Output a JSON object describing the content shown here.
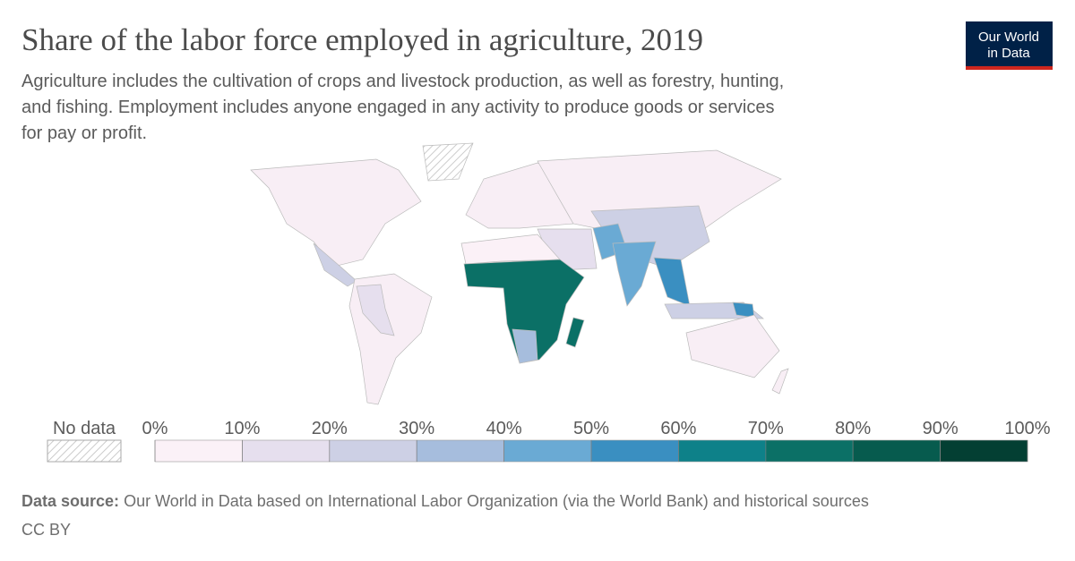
{
  "header": {
    "title": "Share of the labor force employed in agriculture, 2019",
    "subtitle_lines": [
      "Agriculture includes the cultivation of crops and livestock production, as well as forestry, hunting,",
      "and fishing. Employment includes anyone engaged in any activity to produce goods or services",
      "for pay or profit."
    ],
    "logo_lines": [
      "Our World",
      "in Data"
    ]
  },
  "legend": {
    "no_data_label": "No data",
    "ticks": [
      {
        "value": 0,
        "label": "0%"
      },
      {
        "value": 10,
        "label": "10%"
      },
      {
        "value": 20,
        "label": "20%"
      },
      {
        "value": 30,
        "label": "30%"
      },
      {
        "value": 40,
        "label": "40%"
      },
      {
        "value": 50,
        "label": "50%"
      },
      {
        "value": 60,
        "label": "60%"
      },
      {
        "value": 70,
        "label": "70%"
      },
      {
        "value": 80,
        "label": "80%"
      },
      {
        "value": 90,
        "label": "90%"
      },
      {
        "value": 100,
        "label": "100%"
      }
    ],
    "colors": [
      "#fbf1f7",
      "#e6dfee",
      "#cdd0e5",
      "#a6bddd",
      "#6aaad4",
      "#3a8fc1",
      "#0e8189",
      "#0b7066",
      "#075b4e",
      "#033f33"
    ]
  },
  "footer": {
    "source_label": "Data source:",
    "source": "Our World in Data based on International Labor Organization (via the World Bank) and historical sources",
    "license": "CC BY"
  }
}
